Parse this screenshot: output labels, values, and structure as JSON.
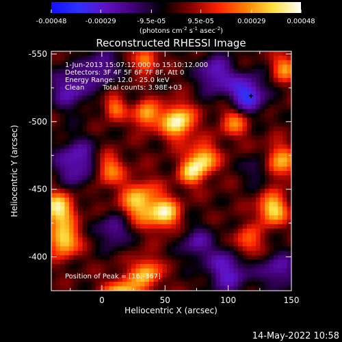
{
  "chart_data": {
    "type": "heatmap",
    "title": "Reconstructed RHESSI Image",
    "xlabel": "Heliocentric X (arcsec)",
    "ylabel": "Heliocentric Y (arcsec)",
    "xlim": [
      -40,
      150
    ],
    "ylim": [
      -552,
      -375
    ],
    "x_ticks": [
      "0",
      "50",
      "100",
      "150"
    ],
    "x_tick_values": [
      0,
      50,
      100,
      150
    ],
    "y_ticks": [
      "-400",
      "-450",
      "-500",
      "-550"
    ],
    "y_tick_values": [
      -400,
      -450,
      -500,
      -550
    ],
    "colorbar": {
      "ticks": [
        "-0.00048",
        "-0.00029",
        "-9.5e-05",
        "9.5e-05",
        "0.00029",
        "0.00048"
      ],
      "tick_values": [
        -0.00048,
        -0.00029,
        -9.5e-05,
        9.5e-05,
        0.00029,
        0.00048
      ],
      "range": [
        -0.00048,
        0.00048
      ],
      "colormap": [
        "#1010ff",
        "#3030ff",
        "#6010c0",
        "#400070",
        "#000000",
        "#800000",
        "#ff2000",
        "#ff8000",
        "#ffe040",
        "#ffffff"
      ]
    },
    "annotations": [
      "1-Jun-2013 15:07:12.000 to 15:10:12.000",
      "Detectors: 3F 4F 5F 6F 7F 8F, Att 0",
      "Energy Range: 12.0 - 25.0 keV",
      "Clean",
      "Total counts: 3.98E+03",
      "Position of Peak = [16,-367]"
    ],
    "sources": [
      {
        "x": 16,
        "y": -367,
        "amp": 1.1,
        "w": 10
      },
      {
        "x": 35,
        "y": -388,
        "amp": 0.7,
        "w": 8
      },
      {
        "x": -30,
        "y": -412,
        "amp": 0.85,
        "w": 8
      },
      {
        "x": -35,
        "y": -435,
        "amp": 0.9,
        "w": 9
      },
      {
        "x": 30,
        "y": -440,
        "amp": 0.75,
        "w": 11
      },
      {
        "x": 50,
        "y": -432,
        "amp": 0.8,
        "w": 8
      },
      {
        "x": 80,
        "y": -472,
        "amp": 0.8,
        "w": 8
      },
      {
        "x": 70,
        "y": -462,
        "amp": 0.6,
        "w": 7
      },
      {
        "x": 135,
        "y": -435,
        "amp": 0.85,
        "w": 8
      },
      {
        "x": 115,
        "y": -410,
        "amp": 0.55,
        "w": 8
      },
      {
        "x": 140,
        "y": -470,
        "amp": 0.7,
        "w": 9
      },
      {
        "x": 5,
        "y": -465,
        "amp": 0.6,
        "w": 8
      },
      {
        "x": 60,
        "y": -500,
        "amp": 0.95,
        "w": 9
      },
      {
        "x": 35,
        "y": -505,
        "amp": 0.7,
        "w": 7
      },
      {
        "x": 10,
        "y": -510,
        "amp": 0.55,
        "w": 6
      },
      {
        "x": 35,
        "y": -545,
        "amp": 0.65,
        "w": 6
      },
      {
        "x": 145,
        "y": -540,
        "amp": 0.6,
        "w": 7
      },
      {
        "x": 105,
        "y": -500,
        "amp": 0.55,
        "w": 8
      },
      {
        "x": 100,
        "y": -390,
        "amp": -0.6,
        "w": 12
      },
      {
        "x": -20,
        "y": -470,
        "amp": -0.6,
        "w": 12
      },
      {
        "x": 115,
        "y": -520,
        "amp": -0.8,
        "w": 10
      },
      {
        "x": 90,
        "y": -535,
        "amp": -0.6,
        "w": 10
      },
      {
        "x": -25,
        "y": -525,
        "amp": -0.55,
        "w": 11
      },
      {
        "x": 10,
        "y": -420,
        "amp": -0.5,
        "w": 9
      },
      {
        "x": 75,
        "y": -410,
        "amp": -0.45,
        "w": 9
      },
      {
        "x": 140,
        "y": -390,
        "amp": -0.5,
        "w": 10
      },
      {
        "x": 0,
        "y": -540,
        "amp": -0.5,
        "w": 9
      },
      {
        "x": 125,
        "y": -465,
        "amp": -0.4,
        "w": 8
      }
    ],
    "peak": {
      "x": 16,
      "y": -367
    }
  },
  "timestamp": "14-May-2022 10:58"
}
